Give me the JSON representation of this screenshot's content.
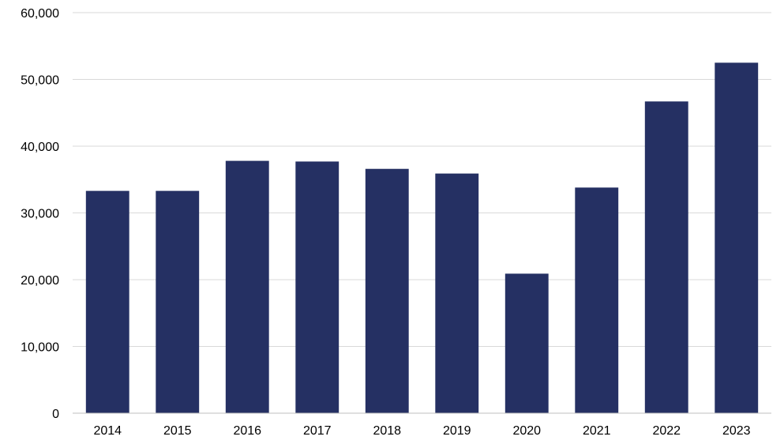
{
  "chart_data": {
    "type": "bar",
    "title": "",
    "xlabel": "",
    "ylabel": "",
    "categories": [
      "2014",
      "2015",
      "2016",
      "2017",
      "2018",
      "2019",
      "2020",
      "2021",
      "2022",
      "2023"
    ],
    "values": [
      33300,
      33300,
      37800,
      37700,
      36600,
      35900,
      20900,
      33800,
      46700,
      52500
    ],
    "ylim": [
      0,
      60000
    ],
    "yticks": [
      0,
      10000,
      20000,
      30000,
      40000,
      50000,
      60000
    ],
    "ytick_labels": [
      "0",
      "10,000",
      "20,000",
      "30,000",
      "40,000",
      "50,000",
      "60,000"
    ],
    "grid": true,
    "legend": "none",
    "bar_color": "#253063"
  }
}
